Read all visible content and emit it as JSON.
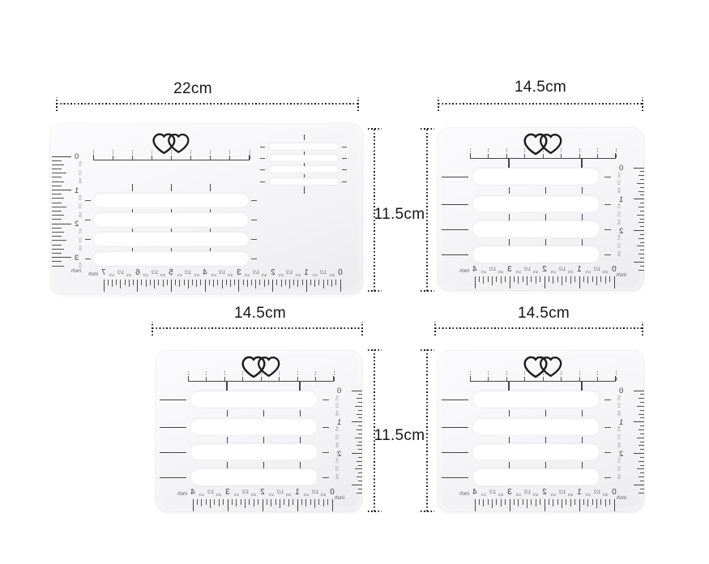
{
  "image": {
    "type": "product-size-illustration",
    "background": "#ffffff"
  },
  "annotations": {
    "large_width": "22cm",
    "small_top_width": "14.5cm",
    "small_bottom_left_width": "14.5cm",
    "small_bottom_right_width": "14.5cm",
    "top_row_height": "11.5cm",
    "bottom_row_height": "11.5cm"
  },
  "colors": {
    "dimension_ink": "#1b1b1b",
    "stencil_body": "#f6f6f8",
    "stencil_edge": "#e2e2e7",
    "marking": "#55555a",
    "number_ink": "#3e3e44",
    "slot": "#ffffff",
    "heart": "#1d1d20"
  },
  "large_template": {
    "icon": "double-heart-icon",
    "address_slots": 4,
    "corner_slots": 4,
    "bottom_ruler": {
      "unit": "inch",
      "numbers": [
        "7",
        "6",
        "5",
        "4",
        "3",
        "2",
        "1",
        "0"
      ],
      "fractions": [
        "1/4",
        "1/2",
        "3/4"
      ],
      "mirrored": true
    },
    "left_ruler": {
      "unit": "inch",
      "numbers": [
        "0",
        "1",
        "2",
        "3"
      ],
      "fractions": [
        "1/4",
        "1/2",
        "3/4"
      ],
      "mirrored": true
    }
  },
  "small_template": {
    "icon": "double-heart-icon",
    "address_slots": 4,
    "bottom_ruler": {
      "unit": "inch",
      "numbers": [
        "4",
        "3",
        "2",
        "1",
        "0"
      ],
      "fractions": [
        "1/4",
        "1/2",
        "3/4"
      ],
      "mirrored": true
    },
    "right_ruler": {
      "unit": "inch",
      "numbers": [
        "0",
        "1",
        "2"
      ],
      "fractions": [
        "1/4",
        "1/2",
        "3/4"
      ],
      "mirrored": true
    }
  }
}
